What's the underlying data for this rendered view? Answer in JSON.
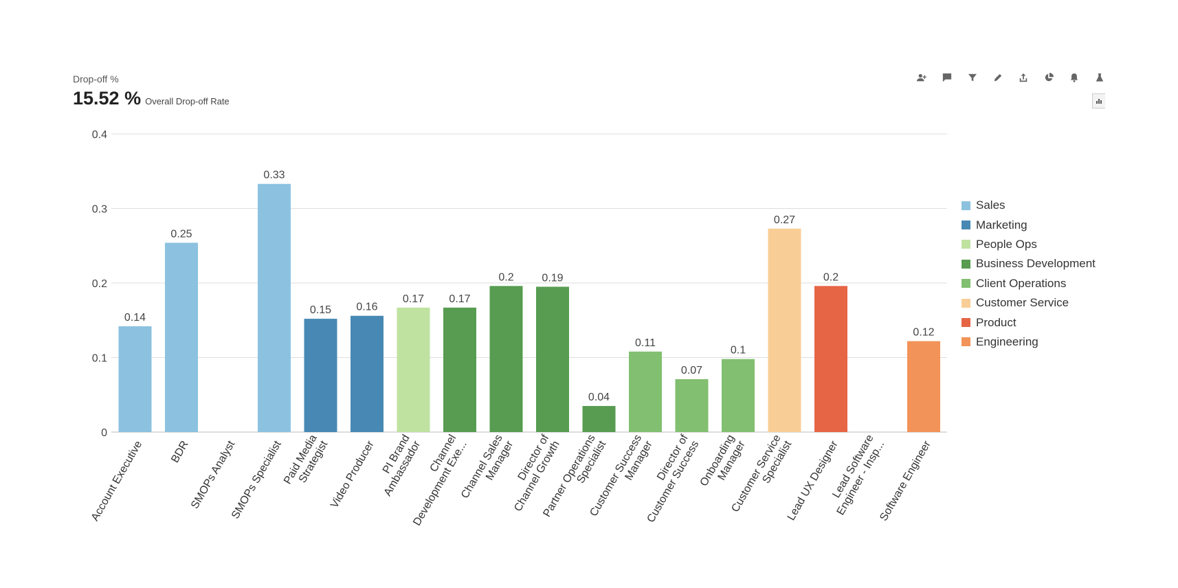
{
  "widget": {
    "title": "Drop-off %",
    "kpi_value": "15.52 %",
    "kpi_caption": "Overall Drop-off Rate"
  },
  "toolbar": [
    {
      "name": "add-user-icon",
      "interactable": true
    },
    {
      "name": "comment-icon",
      "interactable": true
    },
    {
      "name": "filter-icon",
      "interactable": true
    },
    {
      "name": "edit-icon",
      "interactable": true
    },
    {
      "name": "share-icon",
      "interactable": true
    },
    {
      "name": "pie-chart-icon",
      "interactable": true
    },
    {
      "name": "bell-icon",
      "interactable": true
    },
    {
      "name": "flask-icon",
      "interactable": true
    }
  ],
  "view_toggle": {
    "icon": "bar-chart-icon"
  },
  "chart_data": {
    "type": "bar",
    "title": "",
    "xlabel": "",
    "ylabel": "",
    "ylim": [
      0,
      0.4
    ],
    "yticks": [
      {
        "value": 0,
        "label": "0"
      },
      {
        "value": 0.1,
        "label": "0.1"
      },
      {
        "value": 0.2,
        "label": "0.2"
      },
      {
        "value": 0.3,
        "label": "0.3"
      },
      {
        "value": 0.4,
        "label": "0.4"
      }
    ],
    "grid": true,
    "legend_position": "right",
    "legend": [
      {
        "name": "Sales",
        "color": "#8cc2e0"
      },
      {
        "name": "Marketing",
        "color": "#4789b4"
      },
      {
        "name": "People Ops",
        "color": "#bfe2a1"
      },
      {
        "name": "Business Development",
        "color": "#579c51"
      },
      {
        "name": "Client Operations",
        "color": "#82bf70"
      },
      {
        "name": "Customer Service",
        "color": "#f9ce96"
      },
      {
        "name": "Product",
        "color": "#e66545"
      },
      {
        "name": "Engineering",
        "color": "#f29359"
      }
    ],
    "bars": [
      {
        "category": [
          "Account Executive"
        ],
        "value": 0.142,
        "label": "0.14",
        "group": "Sales"
      },
      {
        "category": [
          "BDR"
        ],
        "value": 0.254,
        "label": "0.25",
        "group": "Sales"
      },
      {
        "category": [
          "SMOPs Analyst"
        ],
        "value": null,
        "label": "",
        "group": "Sales"
      },
      {
        "category": [
          "SMOPs Specialist"
        ],
        "value": 0.333,
        "label": "0.33",
        "group": "Sales"
      },
      {
        "category": [
          "Paid Media",
          "Strategist"
        ],
        "value": 0.152,
        "label": "0.15",
        "group": "Marketing"
      },
      {
        "category": [
          "Video Producer"
        ],
        "value": 0.156,
        "label": "0.16",
        "group": "Marketing"
      },
      {
        "category": [
          "PI Brand",
          "Ambassador"
        ],
        "value": 0.167,
        "label": "0.17",
        "group": "People Ops"
      },
      {
        "category": [
          "Channel",
          "Development Exe..."
        ],
        "value": 0.167,
        "label": "0.17",
        "group": "Business Development"
      },
      {
        "category": [
          "Channel Sales",
          "Manager"
        ],
        "value": 0.196,
        "label": "0.2",
        "group": "Business Development"
      },
      {
        "category": [
          "Director of",
          "Channel Growth"
        ],
        "value": 0.195,
        "label": "0.19",
        "group": "Business Development"
      },
      {
        "category": [
          "Partner Operations",
          "Specialist"
        ],
        "value": 0.035,
        "label": "0.04",
        "group": "Business Development"
      },
      {
        "category": [
          "Customer Success",
          "Manager"
        ],
        "value": 0.108,
        "label": "0.11",
        "group": "Client Operations"
      },
      {
        "category": [
          "Director of",
          "Customer Success"
        ],
        "value": 0.071,
        "label": "0.07",
        "group": "Client Operations"
      },
      {
        "category": [
          "Onboarding",
          "Manager"
        ],
        "value": 0.098,
        "label": "0.1",
        "group": "Client Operations"
      },
      {
        "category": [
          "Customer Service",
          "Specialist"
        ],
        "value": 0.273,
        "label": "0.27",
        "group": "Customer Service"
      },
      {
        "category": [
          "Lead UX Designer"
        ],
        "value": 0.196,
        "label": "0.2",
        "group": "Product"
      },
      {
        "category": [
          "Lead Software",
          "Engineer - Insp..."
        ],
        "value": null,
        "label": "",
        "group": "Engineering"
      },
      {
        "category": [
          "Software Engineer"
        ],
        "value": 0.122,
        "label": "0.12",
        "group": "Engineering"
      }
    ]
  }
}
